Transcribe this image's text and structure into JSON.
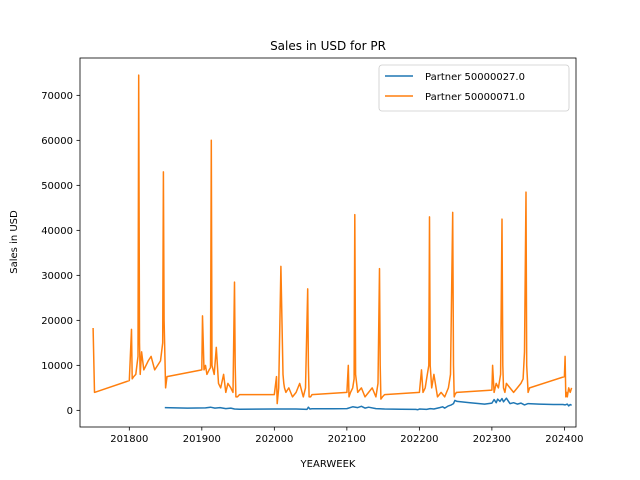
{
  "chart_data": {
    "type": "line",
    "title": "Sales in USD for PR",
    "xlabel": "YEARWEEK",
    "ylabel": "Sales in USD",
    "xlim": [
      201732,
      202416
    ],
    "ylim": [
      -3700,
      78300
    ],
    "xticks": [
      201800,
      201900,
      202000,
      202100,
      202200,
      202300,
      202400
    ],
    "xtick_labels": [
      "201800",
      "201900",
      "202000",
      "202100",
      "202200",
      "202300",
      "202400"
    ],
    "yticks": [
      0,
      10000,
      20000,
      30000,
      40000,
      50000,
      60000,
      70000
    ],
    "ytick_labels": [
      "0",
      "10000",
      "20000",
      "30000",
      "40000",
      "50000",
      "60000",
      "70000"
    ],
    "grid": false,
    "legend_position": "top-right",
    "series": [
      {
        "name": "Partner 50000027.0",
        "color": "#1f77b4",
        "x": [
          201849,
          201880,
          201905,
          201912,
          201918,
          201925,
          201933,
          201940,
          201945,
          201952,
          202000,
          202030,
          202045,
          202047,
          202049,
          202052,
          202080,
          202100,
          202108,
          202115,
          202120,
          202125,
          202130,
          202140,
          202152,
          202175,
          202195,
          202198,
          202200,
          202210,
          202215,
          202220,
          202228,
          202232,
          202235,
          202240,
          202244,
          202247,
          202249,
          202252,
          202270,
          202290,
          202300,
          202303,
          202306,
          202308,
          202311,
          202314,
          202316,
          202320,
          202325,
          202330,
          202335,
          202340,
          202345,
          202350,
          202365,
          202385,
          202398,
          202401,
          202404,
          202406,
          202408,
          202410
        ],
        "y": [
          600,
          500,
          550,
          700,
          500,
          600,
          400,
          500,
          300,
          250,
          300,
          300,
          200,
          700,
          300,
          350,
          350,
          400,
          800,
          600,
          900,
          500,
          700,
          400,
          300,
          250,
          200,
          150,
          300,
          200,
          400,
          300,
          600,
          800,
          500,
          1000,
          1200,
          1500,
          2200,
          2000,
          1700,
          1400,
          1600,
          2400,
          1700,
          2500,
          2000,
          2600,
          1900,
          2700,
          1500,
          1700,
          1400,
          1600,
          1200,
          1500,
          1400,
          1300,
          1300,
          1200,
          1400,
          1000,
          1300,
          1100
        ]
      },
      {
        "name": "Partner 50000071.0",
        "color": "#ff7f0e",
        "x": [
          201750,
          201752,
          201800,
          201803,
          201804,
          201806,
          201809,
          201812,
          201813,
          201814,
          201815,
          201817,
          201820,
          201823,
          201826,
          201830,
          201835,
          201839,
          201843,
          201846,
          201847,
          201848,
          201850,
          201852,
          201900,
          201901,
          201903,
          201905,
          201907,
          201910,
          201912,
          201913,
          201914,
          201917,
          201920,
          201923,
          201926,
          201930,
          201933,
          201936,
          201940,
          201943,
          201945,
          201946,
          201947,
          201949,
          201952,
          202000,
          202003,
          202004,
          202006,
          202009,
          202012,
          202013,
          202014,
          202016,
          202020,
          202025,
          202030,
          202035,
          202040,
          202043,
          202046,
          202047,
          202048,
          202050,
          202052,
          202100,
          202102,
          202103,
          202105,
          202108,
          202110,
          202111,
          202112,
          202115,
          202120,
          202125,
          202130,
          202135,
          202140,
          202143,
          202145,
          202146,
          202147,
          202149,
          202152,
          202200,
          202203,
          202205,
          202208,
          202210,
          202213,
          202214,
          202215,
          202217,
          202220,
          202225,
          202230,
          202235,
          202240,
          202243,
          202246,
          202247,
          202248,
          202249,
          202251,
          202252,
          202300,
          202301,
          202303,
          202306,
          202309,
          202312,
          202314,
          202315,
          202316,
          202318,
          202320,
          202325,
          202330,
          202335,
          202340,
          202343,
          202345,
          202347,
          202348,
          202350,
          202352,
          202400,
          202401,
          202402,
          202403,
          202404,
          202406,
          202408,
          202410
        ],
        "y": [
          18300,
          4000,
          6600,
          18000,
          7000,
          7500,
          8000,
          12000,
          74500,
          15000,
          8000,
          13000,
          9000,
          10000,
          11000,
          12000,
          9000,
          10000,
          11000,
          15000,
          53000,
          20000,
          5000,
          7500,
          9000,
          21000,
          9000,
          10000,
          8000,
          9000,
          9500,
          60000,
          10000,
          8000,
          14000,
          6000,
          5000,
          8000,
          4000,
          6000,
          5000,
          4000,
          28500,
          10000,
          3000,
          3000,
          3500,
          3500,
          7500,
          1500,
          5000,
          32000,
          8000,
          6000,
          5000,
          4000,
          5000,
          3000,
          4000,
          6000,
          3000,
          5000,
          27000,
          10000,
          3000,
          3000,
          3500,
          4000,
          10000,
          3000,
          4000,
          5000,
          7000,
          43500,
          8000,
          4000,
          5000,
          3000,
          4000,
          5000,
          3000,
          6000,
          31500,
          10000,
          2500,
          3000,
          3500,
          4000,
          9000,
          4000,
          5000,
          7000,
          10000,
          43000,
          10000,
          5000,
          8000,
          3000,
          4000,
          3000,
          5000,
          8000,
          44000,
          10000,
          3000,
          3500,
          4000,
          4000,
          4500,
          10000,
          4000,
          6000,
          5000,
          8000,
          42500,
          10000,
          5000,
          4000,
          6000,
          5000,
          4000,
          5000,
          6000,
          7000,
          13000,
          48500,
          10000,
          4000,
          5000,
          7500,
          12000,
          3000,
          4000,
          3000,
          5000,
          4000,
          5000
        ]
      }
    ]
  }
}
